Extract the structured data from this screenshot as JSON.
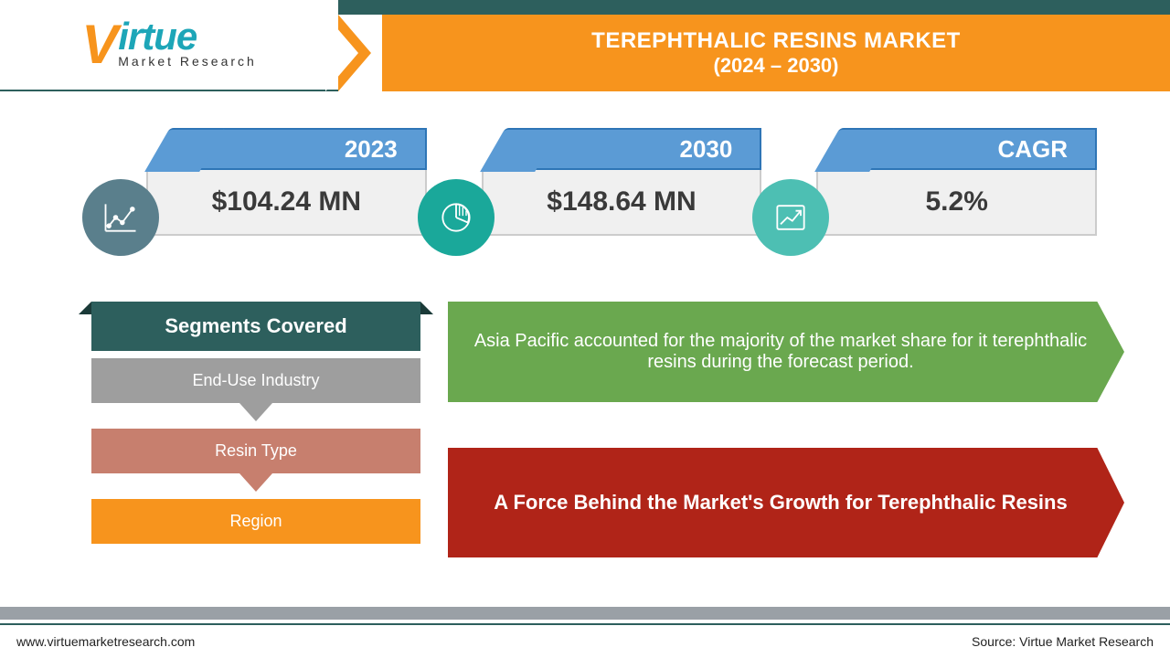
{
  "brand": {
    "name_main": "irtue",
    "name_sub": "Market Research",
    "orange": "#f7941d",
    "teal": "#1da6b8",
    "dark_teal": "#2d5f5d"
  },
  "title": {
    "line1": "TEREPHTHALIC RESINS MARKET",
    "line2": "(2024 – 2030)"
  },
  "metrics": [
    {
      "label": "2023",
      "value": "$104.24 MN",
      "icon": "line-chart",
      "circle_color": "#5a7f8c"
    },
    {
      "label": "2030",
      "value": "$148.64 MN",
      "icon": "pie-chart",
      "circle_color": "#1aa89a"
    },
    {
      "label": "CAGR",
      "value": "5.2%",
      "icon": "growth",
      "circle_color": "#4dbfb3"
    }
  ],
  "metric_style": {
    "tab_bg": "#5b9bd5",
    "tab_border": "#2e75b6",
    "body_bg": "#f0f0f0",
    "label_fontsize": 26,
    "value_fontsize": 30
  },
  "segments": {
    "heading": "Segments Covered",
    "items": [
      {
        "label": "End-Use Industry",
        "bg": "#9e9e9e",
        "arrow": "#9e9e9e"
      },
      {
        "label": "Resin Type",
        "bg": "#c77f6e",
        "arrow": "#c77f6e"
      },
      {
        "label": "Region",
        "bg": "#f7941d",
        "arrow": null
      }
    ]
  },
  "callouts": {
    "green": "Asia Pacific accounted for the majority of the market share for it terephthalic resins during the forecast period.",
    "red": "A Force Behind the Market's Growth for Terephthalic Resins"
  },
  "footer": {
    "left": "www.virtuemarketresearch.com",
    "right": "Source: Virtue Market Research"
  },
  "colors": {
    "green": "#6aa84f",
    "red": "#b02418",
    "grey_bar": "#9aa0a6"
  }
}
